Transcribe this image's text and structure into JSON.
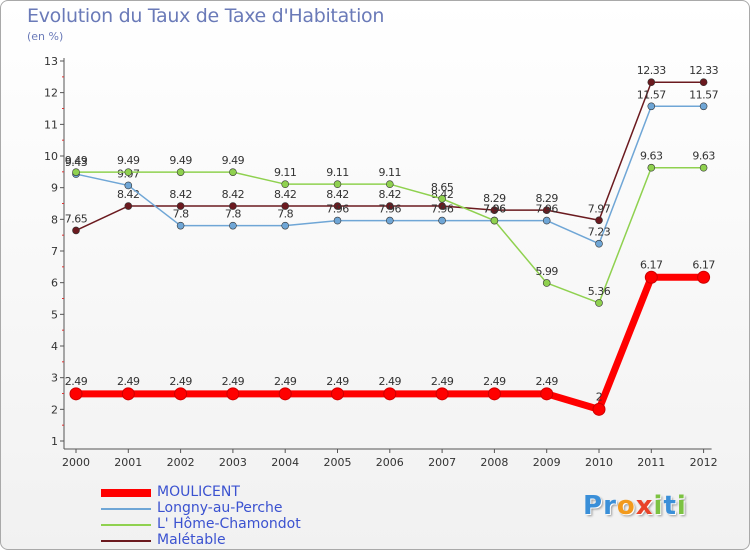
{
  "chart_data": {
    "type": "line",
    "title": "Evolution du Taux de Taxe d'Habitation",
    "subtitle": "(en %)",
    "xlabel": "",
    "ylabel": "(en %)",
    "ylim": [
      1,
      13
    ],
    "yticks": [
      1,
      2,
      3,
      4,
      5,
      6,
      7,
      8,
      9,
      10,
      11,
      12,
      13
    ],
    "categories": [
      "2000",
      "2001",
      "2002",
      "2003",
      "2004",
      "2005",
      "2006",
      "2007",
      "2008",
      "2009",
      "2010",
      "2011",
      "2012"
    ],
    "series": [
      {
        "name": "Malétable",
        "color": "#6b1a1f",
        "values": [
          7.65,
          8.42,
          8.42,
          8.42,
          8.42,
          8.42,
          8.42,
          8.42,
          8.29,
          8.29,
          7.97,
          12.33,
          12.33
        ],
        "labels": [
          "7.65",
          "8.42",
          "8.42",
          "8.42",
          "8.42",
          "8.42",
          "8.42",
          "8.42",
          "8.29",
          "8.29",
          "7.97",
          "12.33",
          "12.33"
        ]
      },
      {
        "name": "Longny-au-Perche",
        "color": "#6fa6d6",
        "values": [
          9.43,
          9.07,
          7.8,
          7.8,
          7.8,
          7.96,
          7.96,
          7.96,
          7.96,
          7.96,
          7.23,
          11.57,
          11.57
        ],
        "labels": [
          "9.43",
          "9.07",
          "7.8",
          "7.8",
          "7.8",
          "7.96",
          "7.96",
          "7.96",
          "7.96",
          "7.96",
          "7.23",
          "11.57",
          "11.57"
        ]
      },
      {
        "name": "L' Hôme-Chamondot",
        "color": "#8fd14f",
        "values": [
          9.49,
          9.49,
          9.49,
          9.49,
          9.11,
          9.11,
          9.11,
          8.65,
          7.96,
          5.99,
          5.36,
          9.63,
          9.63
        ],
        "labels": [
          "9.49",
          "9.49",
          "9.49",
          "9.49",
          "9.11",
          "9.11",
          "9.11",
          "8.65",
          "7.96",
          "5.99",
          "5.36",
          "9.63",
          "9.63"
        ]
      },
      {
        "name": "MOULICENT",
        "color": "#ff0000",
        "values": [
          2.49,
          2.49,
          2.49,
          2.49,
          2.49,
          2.49,
          2.49,
          2.49,
          2.49,
          2.49,
          2,
          6.17,
          6.17
        ],
        "labels": [
          "2.49",
          "2.49",
          "2.49",
          "2.49",
          "2.49",
          "2.49",
          "2.49",
          "2.49",
          "2.49",
          "2.49",
          "2",
          "6.17",
          "6.17"
        ]
      }
    ]
  },
  "legend": {
    "items": [
      {
        "label": "MOULICENT",
        "color": "#ff0000",
        "thick": true
      },
      {
        "label": "Longny-au-Perche",
        "color": "#6fa6d6",
        "thick": false
      },
      {
        "label": "L' Hôme-Chamondot",
        "color": "#8fd14f",
        "thick": false
      },
      {
        "label": "Malétable",
        "color": "#6b1a1f",
        "thick": false
      }
    ]
  },
  "logo": {
    "letters": [
      "P",
      "r",
      "o",
      "x",
      "i",
      "t",
      "i"
    ],
    "colors": [
      "#3a8fd8",
      "#3a8fd8",
      "#f29a1c",
      "#e8432a",
      "#7cc242",
      "#3a8fd8",
      "#7cc242"
    ]
  }
}
